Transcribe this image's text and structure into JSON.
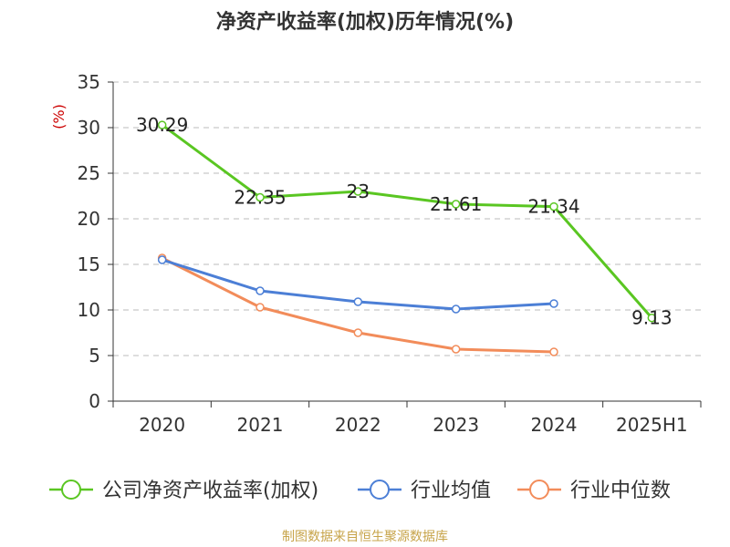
{
  "title": "净资产收益率(加权)历年情况(%)",
  "footer": "制图数据来自恒生聚源数据库",
  "colors": {
    "company": "#5ac622",
    "industry_avg": "#4c7fd6",
    "industry_median": "#f28c5a",
    "footer": "#c7a44a",
    "unit": "#cc0000",
    "grid": "#bbbbbb"
  },
  "chart_data": {
    "type": "line",
    "title": "净资产收益率(加权)历年情况(%)",
    "ylabel": "(%)",
    "xlabel": "",
    "categories": [
      "2020",
      "2021",
      "2022",
      "2023",
      "2024",
      "2025H1"
    ],
    "ylim": [
      0,
      35
    ],
    "yticks": [
      0,
      5,
      10,
      15,
      20,
      25,
      30,
      35
    ],
    "grid": true,
    "legend_position": "bottom",
    "series": [
      {
        "name": "公司净资产收益率(加权)",
        "color": "#5ac622",
        "values": [
          30.29,
          22.35,
          23,
          21.61,
          21.34,
          9.13
        ],
        "labels": [
          "30.29",
          "22.35",
          "23",
          "21.61",
          "21.34",
          "9.13"
        ]
      },
      {
        "name": "行业均值",
        "color": "#4c7fd6",
        "values": [
          15.5,
          12.1,
          10.9,
          10.1,
          10.7,
          null
        ]
      },
      {
        "name": "行业中位数",
        "color": "#f28c5a",
        "values": [
          15.7,
          10.3,
          7.5,
          5.7,
          5.4,
          null
        ]
      }
    ]
  }
}
